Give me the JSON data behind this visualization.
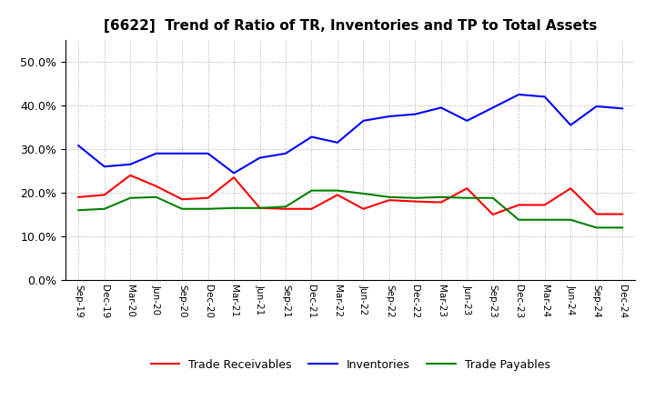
{
  "title": "[6622]  Trend of Ratio of TR, Inventories and TP to Total Assets",
  "x_labels": [
    "Sep-19",
    "Dec-19",
    "Mar-20",
    "Jun-20",
    "Sep-20",
    "Dec-20",
    "Mar-21",
    "Jun-21",
    "Sep-21",
    "Dec-21",
    "Mar-22",
    "Jun-22",
    "Sep-22",
    "Dec-22",
    "Mar-23",
    "Jun-23",
    "Sep-23",
    "Dec-23",
    "Mar-24",
    "Jun-24",
    "Sep-24",
    "Dec-24"
  ],
  "trade_receivables": [
    0.19,
    0.195,
    0.24,
    0.215,
    0.185,
    0.188,
    0.235,
    0.165,
    0.163,
    0.163,
    0.195,
    0.163,
    0.183,
    0.18,
    0.178,
    0.21,
    0.15,
    0.172,
    0.172,
    0.21,
    0.151,
    0.151
  ],
  "inventories": [
    0.308,
    0.26,
    0.265,
    0.29,
    0.29,
    0.29,
    0.245,
    0.28,
    0.29,
    0.328,
    0.315,
    0.365,
    0.375,
    0.38,
    0.395,
    0.365,
    0.395,
    0.425,
    0.42,
    0.355,
    0.398,
    0.393
  ],
  "trade_payables": [
    0.16,
    0.163,
    0.188,
    0.19,
    0.163,
    0.163,
    0.165,
    0.165,
    0.168,
    0.205,
    0.205,
    0.198,
    0.19,
    0.188,
    0.19,
    0.188,
    0.188,
    0.138,
    0.138,
    0.138,
    0.12,
    0.12
  ],
  "color_tr": "#ff0000",
  "color_inv": "#0000ff",
  "color_tp": "#008000",
  "ylim": [
    0.0,
    0.55
  ],
  "yticks": [
    0.0,
    0.1,
    0.2,
    0.3,
    0.4,
    0.5
  ],
  "background_color": "#ffffff",
  "grid_color": "#aaaaaa",
  "title_fontsize": 11,
  "linewidth": 1.5
}
